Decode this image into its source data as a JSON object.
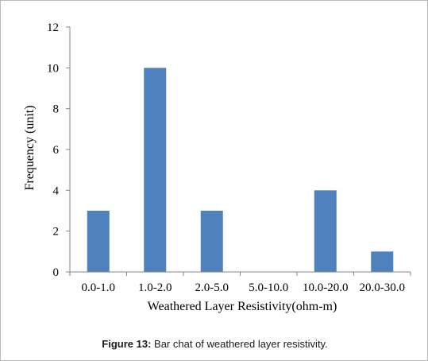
{
  "chart_data": {
    "type": "bar",
    "categories": [
      "0.0-1.0",
      "1.0-2.0",
      "2.0-5.0",
      "5.0-10.0",
      "10.0-20.0",
      "20.0-30.0"
    ],
    "values": [
      3,
      10,
      3,
      0,
      4,
      1
    ],
    "xlabel": "Weathered Layer Resistivity(ohm-m)",
    "ylabel": "Frequency (unit)",
    "ylim": [
      0,
      12
    ],
    "yticks": [
      0,
      2,
      4,
      6,
      8,
      10,
      12
    ],
    "grid": false,
    "legend": "none",
    "bar_color": "#4f81bd",
    "axis_color": "#868686"
  },
  "caption": {
    "label": "Figure 13:",
    "text": " Bar chat of weathered layer resistivity."
  }
}
